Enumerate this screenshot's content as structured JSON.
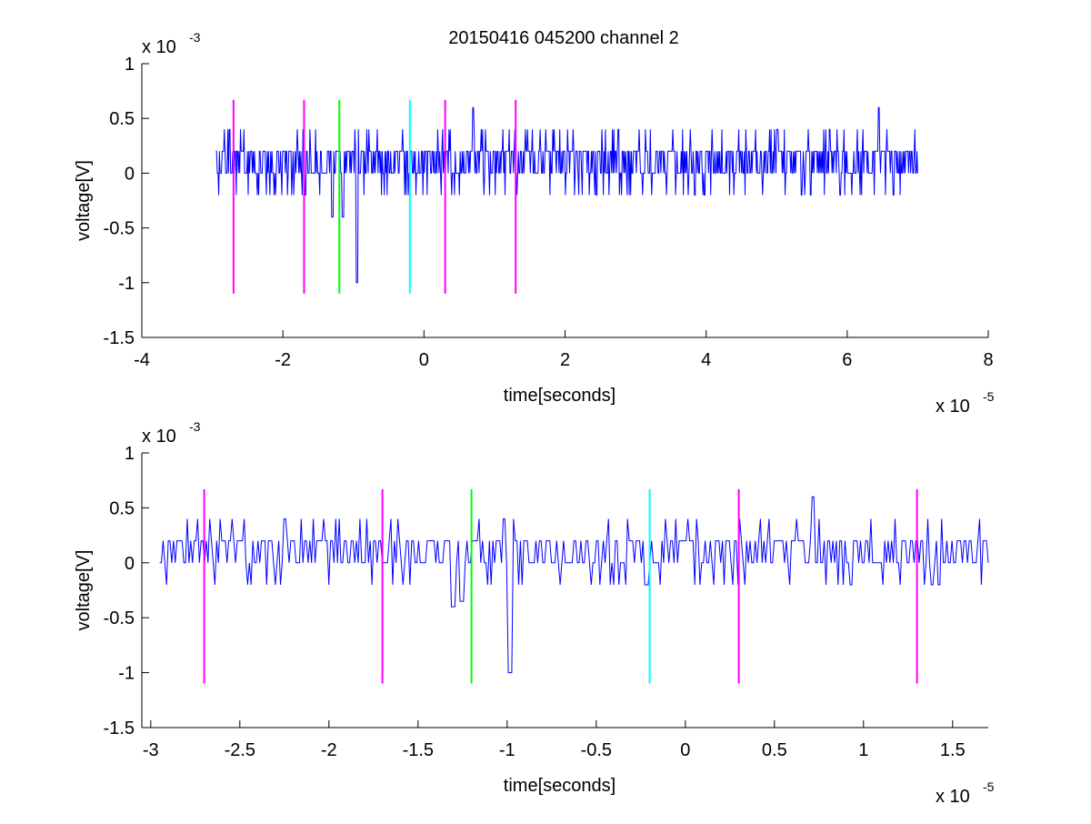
{
  "figure": {
    "title": "20150416 045200 channel 2"
  },
  "chart_data": [
    {
      "type": "line",
      "title": "20150416 045200 channel 2",
      "xlabel": "time[seconds]",
      "ylabel": "voltage[V]",
      "x_multiplier": "x 10",
      "x_multiplier_exp": "-5",
      "y_multiplier": "x 10",
      "y_multiplier_exp": "-3",
      "xlim": [
        -4,
        8
      ],
      "ylim": [
        -1.5,
        1
      ],
      "x_ticks": [
        -4,
        -2,
        0,
        2,
        4,
        6,
        8
      ],
      "x_tick_labels": [
        "-4",
        "-2",
        "0",
        "2",
        "4",
        "6",
        "8"
      ],
      "y_ticks": [
        -1.5,
        -1,
        -0.5,
        0,
        0.5,
        1
      ],
      "y_tick_labels": [
        "-1.5",
        "-1",
        "-0.5",
        "0",
        "0.5",
        "1"
      ],
      "grid": false,
      "signal": {
        "color": "#0000ff",
        "x_start": -2.95,
        "x_end": 7.0,
        "levels": [
          -0.2,
          0,
          0.2,
          0.4
        ],
        "dips": [
          {
            "x": -0.95,
            "y": -1.0
          },
          {
            "x": -1.15,
            "y": -0.4
          },
          {
            "x": -1.3,
            "y": -0.4
          }
        ],
        "peaks": [
          {
            "x": 6.45,
            "y": 0.6
          },
          {
            "x": 0.7,
            "y": 0.6
          }
        ]
      },
      "markers": [
        {
          "x": -2.7,
          "color": "#ff00ff",
          "y_top": 0.67,
          "y_bottom": -1.1
        },
        {
          "x": -1.7,
          "color": "#ff00ff",
          "y_top": 0.67,
          "y_bottom": -1.1
        },
        {
          "x": -1.2,
          "color": "#00ff00",
          "y_top": 0.67,
          "y_bottom": -1.1
        },
        {
          "x": -0.2,
          "color": "#00ffff",
          "y_top": 0.67,
          "y_bottom": -1.1
        },
        {
          "x": 0.3,
          "color": "#ff00ff",
          "y_top": 0.67,
          "y_bottom": -1.1
        },
        {
          "x": 1.3,
          "color": "#ff00ff",
          "y_top": 0.67,
          "y_bottom": -1.1
        }
      ]
    },
    {
      "type": "line",
      "xlabel": "time[seconds]",
      "ylabel": "voltage[V]",
      "x_multiplier": "x 10",
      "x_multiplier_exp": "-5",
      "y_multiplier": "x 10",
      "y_multiplier_exp": "-3",
      "xlim": [
        -3.05,
        1.7
      ],
      "ylim": [
        -1.5,
        1
      ],
      "x_ticks": [
        -3,
        -2.5,
        -2,
        -1.5,
        -1,
        -0.5,
        0,
        0.5,
        1,
        1.5
      ],
      "x_tick_labels": [
        "-3",
        "-2.5",
        "-2",
        "-1.5",
        "-1",
        "-0.5",
        "0",
        "0.5",
        "1",
        "1.5"
      ],
      "y_ticks": [
        -1.5,
        -1,
        -0.5,
        0,
        0.5,
        1
      ],
      "y_tick_labels": [
        "-1.5",
        "-1",
        "-0.5",
        "0",
        "0.5",
        "1"
      ],
      "grid": false,
      "signal": {
        "color": "#0000ff",
        "x_start": -2.95,
        "x_end": 1.7,
        "levels": [
          -0.2,
          0,
          0.2,
          0.4
        ],
        "dips": [
          {
            "x": -0.98,
            "y": -1.0
          },
          {
            "x": -1.3,
            "y": -0.4
          },
          {
            "x": -1.25,
            "y": -0.35
          }
        ],
        "peaks": [
          {
            "x": -2.25,
            "y": 0.4
          },
          {
            "x": 0.72,
            "y": 0.6
          }
        ]
      },
      "markers": [
        {
          "x": -2.7,
          "color": "#ff00ff",
          "y_top": 0.67,
          "y_bottom": -1.1
        },
        {
          "x": -1.7,
          "color": "#ff00ff",
          "y_top": 0.67,
          "y_bottom": -1.1
        },
        {
          "x": -1.2,
          "color": "#00ff00",
          "y_top": 0.67,
          "y_bottom": -1.1
        },
        {
          "x": -0.2,
          "color": "#00ffff",
          "y_top": 0.67,
          "y_bottom": -1.1
        },
        {
          "x": 0.3,
          "color": "#ff00ff",
          "y_top": 0.67,
          "y_bottom": -1.1
        },
        {
          "x": 1.3,
          "color": "#ff00ff",
          "y_top": 0.67,
          "y_bottom": -1.1
        }
      ]
    }
  ]
}
